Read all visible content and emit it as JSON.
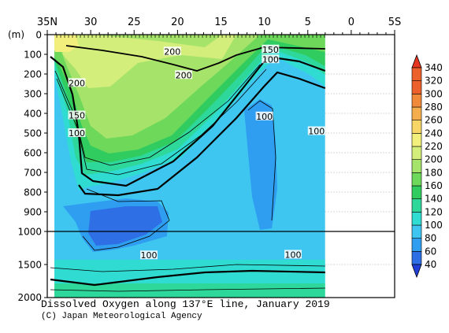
{
  "chart_data": {
    "type": "heatmap",
    "title": "Dissolved Oxygen along 137°E line, January 2019",
    "credit": "(C) Japan Meteorological Agency",
    "y_unit_label": "(m)",
    "x_ticks": [
      {
        "label": "35N",
        "lat": 35
      },
      {
        "label": "30",
        "lat": 30
      },
      {
        "label": "25",
        "lat": 25
      },
      {
        "label": "20",
        "lat": 20
      },
      {
        "label": "15",
        "lat": 15
      },
      {
        "label": "10",
        "lat": 10
      },
      {
        "label": "5",
        "lat": 5
      },
      {
        "label": "0",
        "lat": 0
      },
      {
        "label": "5S",
        "lat": -5
      }
    ],
    "x_range_lat": [
      35,
      -5
    ],
    "data_extent_lat": [
      34,
      3
    ],
    "y_ticks_upper": [
      "0",
      "100",
      "200",
      "300",
      "400",
      "500",
      "600",
      "700",
      "800",
      "900",
      "1000"
    ],
    "y_ticks_lower": [
      "1500",
      "2000"
    ],
    "y_range_upper_m": [
      0,
      1000
    ],
    "y_range_lower_m": [
      1000,
      2000
    ],
    "colorbar": {
      "levels": [
        40,
        60,
        80,
        100,
        120,
        140,
        160,
        180,
        200,
        220,
        240,
        260,
        280,
        300,
        320,
        340
      ],
      "colors": [
        "#1f3fd6",
        "#2f6fe6",
        "#2f9ef0",
        "#3ec6f0",
        "#30dcd2",
        "#2ed79a",
        "#31cc5f",
        "#6ed85a",
        "#a6e36a",
        "#d3ee7a",
        "#f3ef7c",
        "#f7d567",
        "#f4ae4e",
        "#f08a3a",
        "#ec602c",
        "#e5361f"
      ]
    },
    "contour_labels": [
      {
        "text": "200",
        "lat": 20.6,
        "depth_m": 85
      },
      {
        "text": "200",
        "lat": 19.3,
        "depth_m": 205
      },
      {
        "text": "200",
        "lat": 31.6,
        "depth_m": 245
      },
      {
        "text": "150",
        "lat": 9.3,
        "depth_m": 75
      },
      {
        "text": "100",
        "lat": 9.3,
        "depth_m": 125
      },
      {
        "text": "150",
        "lat": 31.6,
        "depth_m": 410
      },
      {
        "text": "100",
        "lat": 31.6,
        "depth_m": 500
      },
      {
        "text": "100",
        "lat": 10.0,
        "depth_m": 415
      },
      {
        "text": "100",
        "lat": 4.0,
        "depth_m": 490
      },
      {
        "text": "100",
        "lat": 23.3,
        "depth_m": 1360
      },
      {
        "text": "100",
        "lat": 6.7,
        "depth_m": 1350
      }
    ]
  }
}
